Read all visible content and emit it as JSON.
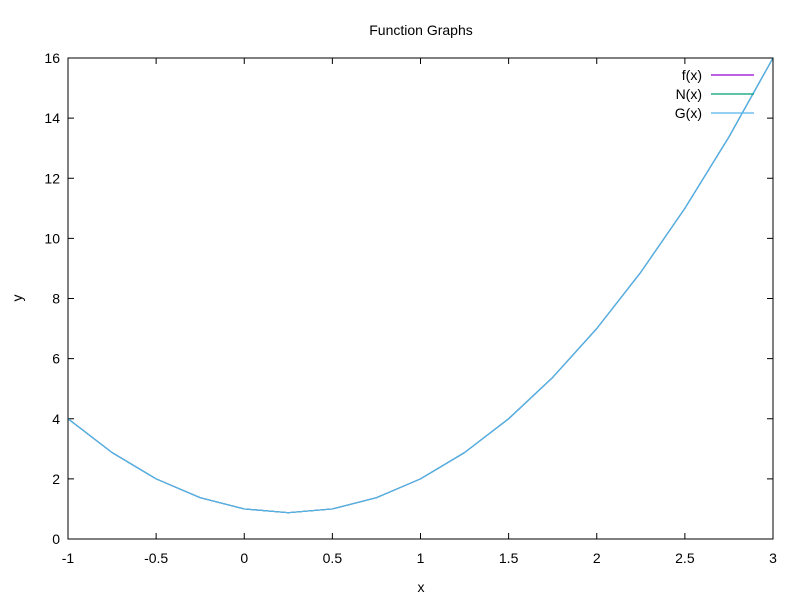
{
  "chart_data": {
    "type": "line",
    "title": "Function Graphs",
    "xlabel": "x",
    "ylabel": "y",
    "xlim": [
      -1,
      3
    ],
    "ylim": [
      0,
      16
    ],
    "x_ticks": [
      -1,
      -0.5,
      0,
      0.5,
      1,
      1.5,
      2,
      2.5,
      3
    ],
    "x_tick_labels": [
      "-1",
      "-0.5",
      "0",
      "0.5",
      "1",
      "1.5",
      "2",
      "2.5",
      "3"
    ],
    "y_ticks": [
      0,
      2,
      4,
      6,
      8,
      10,
      12,
      14,
      16
    ],
    "y_tick_labels": [
      "0",
      "2",
      "4",
      "6",
      "8",
      "10",
      "12",
      "14",
      "16"
    ],
    "grid": false,
    "legend_position": "top-right",
    "x": [
      -1,
      -0.75,
      -0.5,
      -0.25,
      0,
      0.25,
      0.5,
      0.75,
      1,
      1.25,
      1.5,
      1.75,
      2,
      2.25,
      2.5,
      2.75,
      3
    ],
    "series": [
      {
        "name": "f(x)",
        "color": "#9400d3",
        "values": [
          4,
          2.875,
          2,
          1.375,
          1,
          0.875,
          1,
          1.375,
          2,
          2.875,
          4,
          5.375,
          7,
          8.875,
          11,
          13.375,
          16
        ]
      },
      {
        "name": "N(x)",
        "color": "#009e73",
        "values": [
          4,
          2.875,
          2,
          1.375,
          1,
          0.875,
          1,
          1.375,
          2,
          2.875,
          4,
          5.375,
          7,
          8.875,
          11,
          13.375,
          16
        ]
      },
      {
        "name": "G(x)",
        "color": "#56b4e9",
        "values": [
          4,
          2.875,
          2,
          1.375,
          1,
          0.875,
          1,
          1.375,
          2,
          2.875,
          4,
          5.375,
          7,
          8.875,
          11,
          13.375,
          16
        ]
      }
    ]
  }
}
